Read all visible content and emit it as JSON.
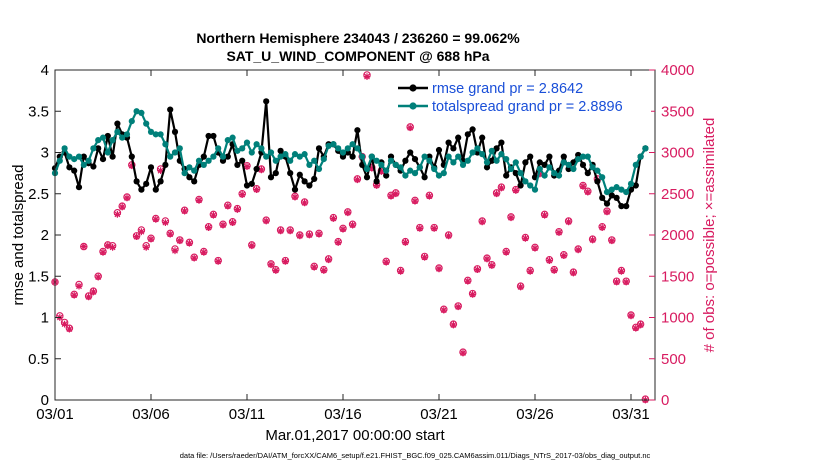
{
  "chart_data": {
    "type": "line",
    "title": "Northern Hemisphere 234043 / 236260 = 99.062%",
    "subtitle": "SAT_U_WIND_COMPONENT @ 688 hPa",
    "xlabel": "Mar.01,2017 00:00:00 start",
    "ylabel": "rmse and totalspread",
    "y2label": "# of obs: o=possible; ×=assimilated",
    "footer": "data file: /Users/raeder/DAI/ATM_forcXX/CAM6_setup/f.e21.FHIST_BGC.f09_025.CAM6assim.011/Diags_NTrS_2017-03/obs_diag_output.nc",
    "xlim": [
      1,
      32.25
    ],
    "ylim": [
      0,
      4
    ],
    "y2lim": [
      0,
      4000
    ],
    "xticks": [
      1,
      6,
      11,
      16,
      21,
      26,
      31
    ],
    "xtick_labels": [
      "03/01",
      "03/06",
      "03/11",
      "03/16",
      "03/21",
      "03/26",
      "03/31"
    ],
    "yticks": [
      0,
      0.5,
      1,
      1.5,
      2,
      2.5,
      3,
      3.5,
      4
    ],
    "ytick_labels": [
      "0",
      "0.5",
      "1",
      "1.5",
      "2",
      "2.5",
      "3",
      "3.5",
      "4"
    ],
    "y2ticks": [
      0,
      500,
      1000,
      1500,
      2000,
      2500,
      3000,
      3500,
      4000
    ],
    "y2tick_labels": [
      "0",
      "500",
      "1000",
      "1500",
      "2000",
      "2500",
      "3000",
      "3500",
      "4000"
    ],
    "x": [
      1.0,
      1.25,
      1.5,
      1.75,
      2.0,
      2.25,
      2.5,
      2.75,
      3.0,
      3.25,
      3.5,
      3.75,
      4.0,
      4.25,
      4.5,
      4.75,
      5.0,
      5.25,
      5.5,
      5.75,
      6.0,
      6.25,
      6.5,
      6.75,
      7.0,
      7.25,
      7.5,
      7.75,
      8.0,
      8.25,
      8.5,
      8.75,
      9.0,
      9.25,
      9.5,
      9.75,
      10.0,
      10.25,
      10.5,
      10.75,
      11.0,
      11.25,
      11.5,
      11.75,
      12.0,
      12.25,
      12.5,
      12.75,
      13.0,
      13.25,
      13.5,
      13.75,
      14.0,
      14.25,
      14.5,
      14.75,
      15.0,
      15.25,
      15.5,
      15.75,
      16.0,
      16.25,
      16.5,
      16.75,
      17.0,
      17.25,
      17.5,
      17.75,
      18.0,
      18.25,
      18.5,
      18.75,
      19.0,
      19.25,
      19.5,
      19.75,
      20.0,
      20.25,
      20.5,
      20.75,
      21.0,
      21.25,
      21.5,
      21.75,
      22.0,
      22.25,
      22.5,
      22.75,
      23.0,
      23.25,
      23.5,
      23.75,
      24.0,
      24.25,
      24.5,
      24.75,
      25.0,
      25.25,
      25.5,
      25.75,
      26.0,
      26.25,
      26.5,
      26.75,
      27.0,
      27.25,
      27.5,
      27.75,
      28.0,
      28.25,
      28.5,
      28.75,
      29.0,
      29.25,
      29.5,
      29.75,
      30.0,
      30.25,
      30.5,
      30.75,
      31.0,
      31.25,
      31.5,
      31.75
    ],
    "series": [
      {
        "name": "rmse grand pr = 2.8642",
        "color": "#000000",
        "axis": "left",
        "values": [
          2.81,
          2.95,
          3.0,
          2.82,
          2.78,
          2.58,
          2.95,
          2.87,
          2.83,
          3.05,
          2.92,
          3.2,
          2.95,
          3.35,
          3.22,
          3.18,
          2.95,
          2.65,
          2.55,
          2.62,
          2.82,
          2.55,
          2.65,
          2.85,
          3.52,
          3.25,
          2.9,
          2.8,
          2.7,
          2.65,
          2.85,
          2.95,
          3.2,
          3.2,
          3.0,
          2.9,
          2.95,
          3.1,
          2.85,
          2.9,
          2.6,
          2.62,
          2.8,
          3.0,
          3.62,
          2.7,
          2.75,
          3.02,
          2.95,
          2.75,
          2.55,
          2.73,
          2.65,
          2.6,
          2.68,
          3.05,
          2.95,
          3.1,
          3.1,
          3.02,
          2.95,
          3.0,
          2.95,
          3.27,
          2.85,
          2.7,
          2.95,
          2.65,
          2.88,
          2.72,
          2.95,
          2.85,
          2.78,
          2.9,
          3.0,
          2.92,
          2.82,
          2.7,
          2.95,
          2.82,
          3.03,
          2.85,
          3.12,
          3.05,
          3.18,
          2.9,
          3.22,
          3.28,
          3.0,
          3.18,
          2.82,
          2.9,
          3.05,
          3.12,
          2.72,
          2.82,
          2.75,
          2.6,
          2.88,
          2.95,
          2.7,
          2.88,
          2.85,
          2.95,
          2.72,
          2.78,
          2.95,
          2.8,
          2.88,
          2.97,
          2.85,
          2.75,
          2.85,
          2.65,
          2.45,
          2.38,
          2.48,
          2.45,
          2.35,
          2.35,
          2.55,
          2.6,
          2.95,
          3.05
        ]
      },
      {
        "name": "totalspread grand pr = 2.8896",
        "color": "#00807a",
        "axis": "left",
        "values": [
          2.75,
          2.9,
          3.05,
          2.95,
          2.92,
          2.95,
          2.85,
          2.9,
          3.05,
          3.15,
          3.18,
          3.0,
          3.15,
          3.25,
          3.18,
          3.22,
          3.38,
          3.5,
          3.48,
          3.35,
          3.25,
          3.22,
          3.22,
          3.1,
          2.95,
          3.0,
          3.05,
          2.75,
          2.82,
          2.78,
          2.9,
          2.85,
          2.9,
          2.95,
          3.05,
          2.95,
          3.15,
          3.18,
          3.02,
          3.05,
          3.12,
          3.0,
          3.1,
          3.05,
          2.95,
          3.0,
          2.9,
          2.95,
          2.98,
          2.9,
          2.98,
          2.95,
          2.98,
          2.85,
          2.9,
          2.8,
          2.92,
          3.08,
          3.1,
          3.05,
          3.0,
          3.05,
          3.1,
          3.05,
          2.95,
          2.8,
          2.95,
          2.9,
          2.85,
          2.78,
          2.9,
          2.85,
          2.82,
          2.72,
          2.78,
          2.75,
          2.82,
          2.95,
          2.9,
          2.8,
          2.72,
          2.75,
          2.95,
          2.88,
          2.95,
          2.85,
          2.9,
          3.0,
          3.05,
          2.98,
          2.88,
          3.02,
          2.9,
          2.98,
          2.92,
          2.8,
          2.88,
          2.75,
          2.65,
          2.6,
          2.55,
          2.8,
          2.72,
          2.82,
          2.75,
          2.72,
          2.88,
          2.85,
          2.8,
          2.92,
          2.95,
          2.95,
          2.82,
          2.78,
          2.7,
          2.52,
          2.55,
          2.58,
          2.55,
          2.52,
          2.62,
          2.85,
          2.95,
          3.05
        ]
      }
    ],
    "obs_possible": [
      1430,
      1020,
      940,
      870,
      1280,
      1400,
      1860,
      1260,
      1320,
      1500,
      1800,
      1880,
      1870,
      2270,
      2350,
      2460,
      2850,
      1990,
      2060,
      1870,
      1960,
      2200,
      2800,
      2170,
      2020,
      1830,
      1940,
      2300,
      1910,
      1730,
      2430,
      1800,
      2100,
      2250,
      1690,
      2130,
      2360,
      2160,
      2320,
      2500,
      2840,
      1880,
      2560,
      2800,
      2180,
      1650,
      1580,
      2060,
      1690,
      2060,
      2470,
      2000,
      2400,
      2010,
      1620,
      2020,
      1580,
      1710,
      2210,
      1920,
      2080,
      2280,
      2130,
      2680,
      2950,
      3940,
      2820,
      2610,
      2780,
      1680,
      2480,
      2510,
      1570,
      1920,
      3310,
      2420,
      2090,
      1740,
      2480,
      2090,
      1600,
      1100,
      2000,
      920,
      1140,
      580,
      1450,
      1290,
      1590,
      2170,
      1720,
      1640,
      2510,
      2580,
      1800,
      2220,
      2550,
      1380,
      1970,
      1570,
      1850,
      2750,
      2250,
      1700,
      1580,
      2040,
      1760,
      2170,
      1550,
      1830,
      2600,
      2530,
      1950,
      2680,
      2100,
      2290,
      1940,
      1440,
      1570,
      1440,
      1030,
      880,
      920,
      10
    ],
    "obs_assimilated": [
      1430,
      1000,
      920,
      860,
      1270,
      1380,
      1860,
      1250,
      1310,
      1490,
      1790,
      1870,
      1850,
      2250,
      2340,
      2450,
      2840,
      1980,
      2040,
      1850,
      1950,
      2190,
      2780,
      2150,
      2010,
      1810,
      1930,
      2290,
      1900,
      1720,
      2420,
      1790,
      2090,
      2240,
      1680,
      2120,
      2350,
      2150,
      2310,
      2490,
      2830,
      1870,
      2550,
      2790,
      2170,
      1640,
      1570,
      2050,
      1680,
      2050,
      2460,
      1990,
      2390,
      2000,
      1610,
      2010,
      1570,
      1700,
      2200,
      1910,
      2070,
      2270,
      2120,
      2670,
      2940,
      3920,
      2810,
      2600,
      2770,
      1670,
      2470,
      2500,
      1560,
      1910,
      3300,
      2410,
      2080,
      1730,
      2470,
      2080,
      1590,
      1090,
      1990,
      910,
      1130,
      570,
      1440,
      1280,
      1580,
      2160,
      1710,
      1630,
      2500,
      2570,
      1790,
      2210,
      2540,
      1370,
      1960,
      1560,
      1840,
      2740,
      2240,
      1690,
      1570,
      2030,
      1750,
      2160,
      1540,
      1820,
      2590,
      2520,
      1940,
      2670,
      2090,
      2280,
      1930,
      1430,
      1560,
      1430,
      1020,
      870,
      910,
      0
    ]
  }
}
